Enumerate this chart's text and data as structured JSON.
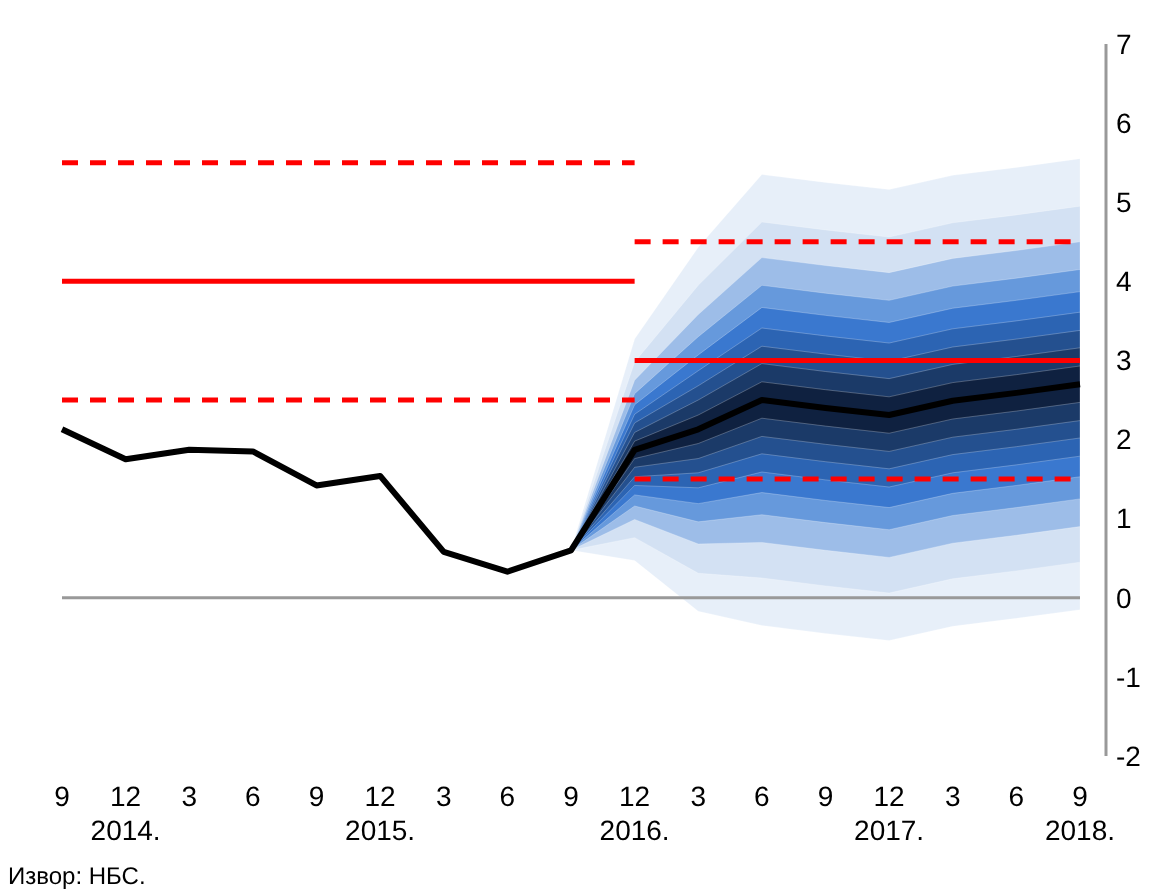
{
  "chart_data": {
    "type": "line",
    "categories": [
      "9",
      "12\n2014.",
      "3",
      "6",
      "9",
      "12\n2015.",
      "3",
      "6",
      "9",
      "12\n2016.",
      "3",
      "6",
      "9",
      "12\n2017.",
      "3",
      "6",
      "9\n2018."
    ],
    "ylim": [
      -2,
      7
    ],
    "yticks": [
      -2,
      -1,
      0,
      1,
      2,
      3,
      4,
      5,
      6,
      7
    ],
    "grid": false,
    "legend": false,
    "ref_lines": [
      {
        "axis": "y",
        "value": 0,
        "color": "#999999"
      }
    ],
    "annotations": [
      "Извор: НБС."
    ],
    "series": [
      {
        "type": "line",
        "line_style": "none",
        "color": "#e7eff9",
        "values": [
          null,
          null,
          null,
          null,
          null,
          null,
          null,
          null,
          null,
          null,
          null,
          null,
          null,
          null,
          null,
          null,
          null
        ],
        "upper": [
          null,
          null,
          null,
          null,
          null,
          null,
          null,
          null,
          0.6,
          3.27,
          4.43,
          5.35,
          5.25,
          5.16,
          5.34,
          5.44,
          5.55
        ],
        "lower": [
          null,
          null,
          null,
          null,
          null,
          null,
          null,
          null,
          0.6,
          0.47,
          -0.17,
          -0.35,
          -0.45,
          -0.54,
          -0.36,
          -0.26,
          -0.15
        ]
      },
      {
        "type": "line",
        "line_style": "none",
        "color": "#d3e1f3",
        "values": [
          null,
          null,
          null,
          null,
          null,
          null,
          null,
          null,
          null,
          null,
          null,
          null,
          null,
          null,
          null,
          null,
          null
        ],
        "upper": [
          null,
          null,
          null,
          null,
          null,
          null,
          null,
          null,
          0.6,
          2.98,
          3.95,
          4.75,
          4.65,
          4.56,
          4.74,
          4.84,
          4.95
        ],
        "lower": [
          null,
          null,
          null,
          null,
          null,
          null,
          null,
          null,
          0.6,
          0.76,
          0.31,
          0.25,
          0.15,
          0.06,
          0.24,
          0.34,
          0.45
        ]
      },
      {
        "type": "line",
        "line_style": "none",
        "color": "#9dbde8",
        "values": [
          null,
          null,
          null,
          null,
          null,
          null,
          null,
          null,
          null,
          null,
          null,
          null,
          null,
          null,
          null,
          null,
          null
        ],
        "upper": [
          null,
          null,
          null,
          null,
          null,
          null,
          null,
          null,
          0.6,
          2.75,
          3.58,
          4.3,
          4.2,
          4.11,
          4.29,
          4.39,
          4.5
        ],
        "lower": [
          null,
          null,
          null,
          null,
          null,
          null,
          null,
          null,
          0.6,
          0.99,
          0.68,
          0.7,
          0.6,
          0.51,
          0.69,
          0.79,
          0.9
        ]
      },
      {
        "type": "line",
        "line_style": "none",
        "color": "#6699dc",
        "values": [
          null,
          null,
          null,
          null,
          null,
          null,
          null,
          null,
          null,
          null,
          null,
          null,
          null,
          null,
          null,
          null,
          null
        ],
        "upper": [
          null,
          null,
          null,
          null,
          null,
          null,
          null,
          null,
          0.6,
          2.58,
          3.3,
          3.95,
          3.85,
          3.76,
          3.94,
          4.04,
          4.15
        ],
        "lower": [
          null,
          null,
          null,
          null,
          null,
          null,
          null,
          null,
          0.6,
          1.16,
          0.96,
          1.05,
          0.95,
          0.86,
          1.04,
          1.14,
          1.25
        ]
      },
      {
        "type": "line",
        "line_style": "none",
        "color": "#3a78cf",
        "values": [
          null,
          null,
          null,
          null,
          null,
          null,
          null,
          null,
          null,
          null,
          null,
          null,
          null,
          null,
          null,
          null,
          null
        ],
        "upper": [
          null,
          null,
          null,
          null,
          null,
          null,
          null,
          null,
          0.6,
          2.44,
          3.07,
          3.67,
          3.57,
          3.48,
          3.66,
          3.76,
          3.87
        ],
        "lower": [
          null,
          null,
          null,
          null,
          null,
          null,
          null,
          null,
          0.6,
          1.3,
          1.19,
          1.33,
          1.23,
          1.14,
          1.32,
          1.42,
          1.53
        ]
      },
      {
        "type": "line",
        "line_style": "none",
        "color": "#2c64b3",
        "values": [
          null,
          null,
          null,
          null,
          null,
          null,
          null,
          null,
          null,
          null,
          null,
          null,
          null,
          null,
          null,
          null,
          null
        ],
        "upper": [
          null,
          null,
          null,
          null,
          null,
          null,
          null,
          null,
          0.6,
          2.32,
          2.87,
          3.41,
          3.31,
          3.22,
          3.4,
          3.5,
          3.61
        ],
        "lower": [
          null,
          null,
          null,
          null,
          null,
          null,
          null,
          null,
          0.6,
          1.42,
          1.39,
          1.59,
          1.49,
          1.4,
          1.58,
          1.68,
          1.79
        ]
      },
      {
        "type": "line",
        "line_style": "none",
        "color": "#24508f",
        "values": [
          null,
          null,
          null,
          null,
          null,
          null,
          null,
          null,
          null,
          null,
          null,
          null,
          null,
          null,
          null,
          null,
          null
        ],
        "upper": [
          null,
          null,
          null,
          null,
          null,
          null,
          null,
          null,
          0.6,
          2.21,
          2.68,
          3.18,
          3.08,
          2.99,
          3.17,
          3.27,
          3.38
        ],
        "lower": [
          null,
          null,
          null,
          null,
          null,
          null,
          null,
          null,
          0.6,
          1.53,
          1.58,
          1.82,
          1.72,
          1.63,
          1.81,
          1.91,
          2.02
        ]
      },
      {
        "type": "line",
        "line_style": "none",
        "color": "#1b3a68",
        "values": [
          null,
          null,
          null,
          null,
          null,
          null,
          null,
          null,
          null,
          null,
          null,
          null,
          null,
          null,
          null,
          null,
          null
        ],
        "upper": [
          null,
          null,
          null,
          null,
          null,
          null,
          null,
          null,
          0.6,
          2.09,
          2.5,
          2.96,
          2.86,
          2.77,
          2.95,
          3.05,
          3.16
        ],
        "lower": [
          null,
          null,
          null,
          null,
          null,
          null,
          null,
          null,
          0.6,
          1.65,
          1.76,
          2.04,
          1.94,
          1.85,
          2.03,
          2.13,
          2.24
        ]
      },
      {
        "type": "line",
        "line_style": "none",
        "color": "#0f2140",
        "values": [
          null,
          null,
          null,
          null,
          null,
          null,
          null,
          null,
          null,
          null,
          null,
          null,
          null,
          null,
          null,
          null,
          null
        ],
        "upper": [
          null,
          null,
          null,
          null,
          null,
          null,
          null,
          null,
          0.6,
          1.98,
          2.31,
          2.73,
          2.63,
          2.54,
          2.72,
          2.82,
          2.93
        ],
        "lower": [
          null,
          null,
          null,
          null,
          null,
          null,
          null,
          null,
          0.6,
          1.76,
          1.95,
          2.27,
          2.17,
          2.08,
          2.26,
          2.36,
          2.47
        ]
      },
      {
        "type": "line",
        "color": "#ff0000",
        "line_style": "dashed",
        "values": [
          5.5,
          5.5,
          5.5,
          5.5,
          5.5,
          5.5,
          5.5,
          5.5,
          5.5,
          5.5,
          null,
          null,
          null,
          null,
          null,
          null,
          null
        ]
      },
      {
        "type": "line",
        "color": "#ff0000",
        "line_style": "solid",
        "values": [
          4,
          4,
          4,
          4,
          4,
          4,
          4,
          4,
          4,
          4,
          null,
          null,
          null,
          null,
          null,
          null,
          null
        ]
      },
      {
        "type": "line",
        "color": "#ff0000",
        "line_style": "dashed",
        "values": [
          2.5,
          2.5,
          2.5,
          2.5,
          2.5,
          2.5,
          2.5,
          2.5,
          2.5,
          2.5,
          null,
          null,
          null,
          null,
          null,
          null,
          null
        ]
      },
      {
        "type": "line",
        "color": "#ff0000",
        "line_style": "dashed",
        "values": [
          null,
          null,
          null,
          null,
          null,
          null,
          null,
          null,
          null,
          4.5,
          4.5,
          4.5,
          4.5,
          4.5,
          4.5,
          4.5,
          4.5
        ]
      },
      {
        "type": "line",
        "color": "#ff0000",
        "line_style": "solid",
        "values": [
          null,
          null,
          null,
          null,
          null,
          null,
          null,
          null,
          null,
          3,
          3,
          3,
          3,
          3,
          3,
          3,
          3
        ]
      },
      {
        "type": "line",
        "color": "#ff0000",
        "line_style": "dashed",
        "values": [
          null,
          null,
          null,
          null,
          null,
          null,
          null,
          null,
          null,
          1.5,
          1.5,
          1.5,
          1.5,
          1.5,
          1.5,
          1.5,
          1.5
        ]
      },
      {
        "color": "#000000",
        "line_style": "solid",
        "values": [
          2.13,
          1.75,
          1.87,
          1.85,
          1.42,
          1.54,
          0.58,
          0.33,
          0.6,
          1.87,
          2.13,
          2.5,
          2.4,
          2.31,
          2.49,
          2.59,
          2.7
        ]
      }
    ]
  }
}
